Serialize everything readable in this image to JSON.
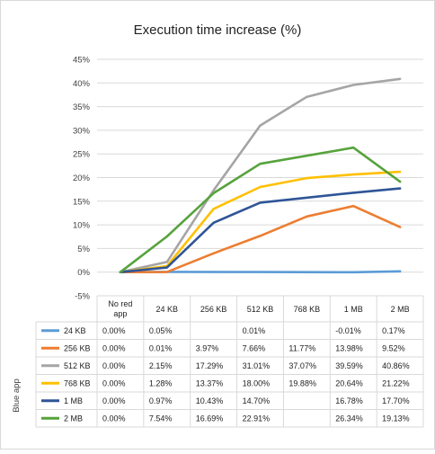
{
  "chart_data": {
    "type": "line",
    "title": "Execution time increase (%)",
    "ylabel": "",
    "table_row_header": "Blue app",
    "ylim": [
      -0.05,
      0.45
    ],
    "ytick_labels": [
      "-5%",
      "0%",
      "5%",
      "10%",
      "15%",
      "20%",
      "25%",
      "30%",
      "35%",
      "40%",
      "45%"
    ],
    "categories": [
      "No red app",
      "24 KB",
      "256 KB",
      "512 KB",
      "768 KB",
      "1 MB",
      "2 MB"
    ],
    "series": [
      {
        "name": "24 KB",
        "color": "#5B9BD5",
        "values": [
          0.0,
          0.0005,
          null,
          0.0001,
          null,
          -0.0001,
          0.0017
        ],
        "labels": [
          "0.00%",
          "0.05%",
          "",
          "0.01%",
          "",
          "-0.01%",
          "0.17%"
        ]
      },
      {
        "name": "256 KB",
        "color": "#ED7D31",
        "values": [
          0.0,
          0.0001,
          0.0397,
          0.0766,
          0.1177,
          0.1398,
          0.0952
        ],
        "labels": [
          "0.00%",
          "0.01%",
          "3.97%",
          "7.66%",
          "11.77%",
          "13.98%",
          "9.52%"
        ]
      },
      {
        "name": "512 KB",
        "color": "#A5A5A5",
        "values": [
          0.0,
          0.0215,
          0.1729,
          0.3101,
          0.3707,
          0.3959,
          0.4086
        ],
        "labels": [
          "0.00%",
          "2.15%",
          "17.29%",
          "31.01%",
          "37.07%",
          "39.59%",
          "40.86%"
        ]
      },
      {
        "name": "768 KB",
        "color": "#FFC000",
        "values": [
          0.0,
          0.0128,
          0.1337,
          0.18,
          0.1988,
          0.2064,
          0.2122
        ],
        "labels": [
          "0.00%",
          "1.28%",
          "13.37%",
          "18.00%",
          "19.88%",
          "20.64%",
          "21.22%"
        ]
      },
      {
        "name": "1 MB",
        "color": "#2F5597",
        "values": [
          0.0,
          0.0097,
          0.1043,
          0.147,
          null,
          0.1678,
          0.177
        ],
        "labels": [
          "0.00%",
          "0.97%",
          "10.43%",
          "14.70%",
          "",
          "16.78%",
          "17.70%"
        ]
      },
      {
        "name": "2 MB",
        "color": "#56A33C",
        "values": [
          0.0,
          0.0754,
          0.1669,
          0.2291,
          null,
          0.2634,
          0.1913
        ],
        "labels": [
          "0.00%",
          "7.54%",
          "16.69%",
          "22.91%",
          "",
          "26.34%",
          "19.13%"
        ]
      }
    ]
  }
}
